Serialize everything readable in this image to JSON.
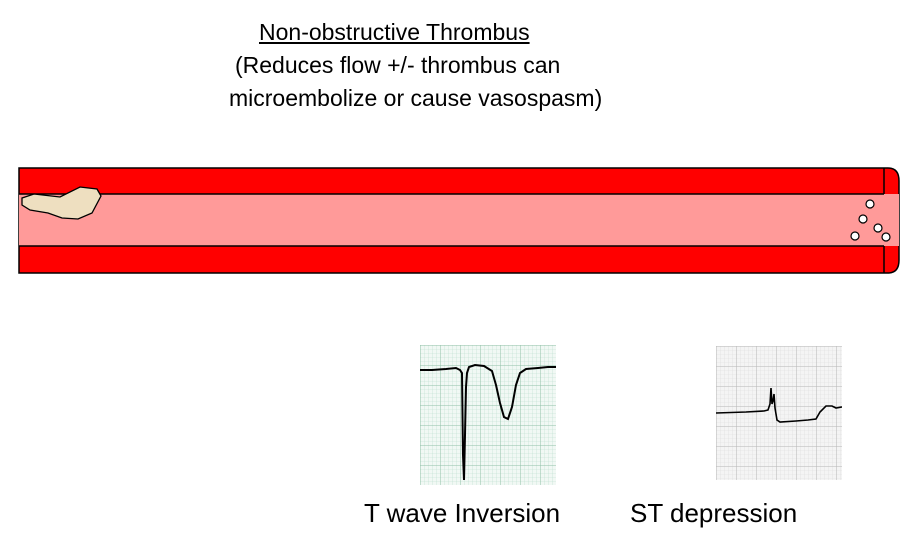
{
  "title": {
    "line1": "Non-obstructive Thrombus",
    "line2": "(Reduces flow +/- thrombus can",
    "line3": "microembolize or cause vasospasm)"
  },
  "colors": {
    "vessel_wall": "#ff0000",
    "vessel_lumen": "#ff9a99",
    "thrombus": "#eedfc0",
    "ecg_grid_green": "#9fc9b4",
    "ecg_grid_gray": "#c8c8c8"
  },
  "ecg_panels": [
    {
      "caption": "T wave Inversion"
    },
    {
      "caption": "ST depression"
    }
  ]
}
